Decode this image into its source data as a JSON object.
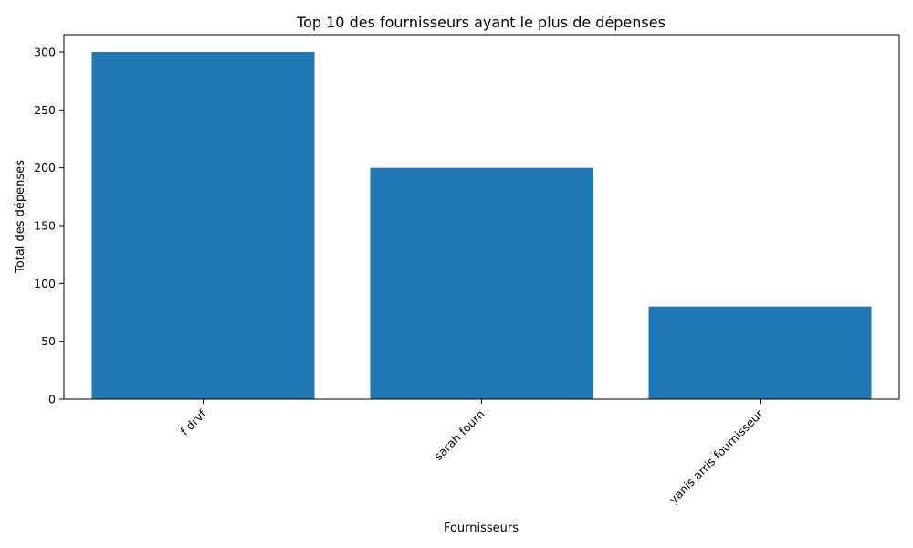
{
  "chart_data": {
    "type": "bar",
    "title": "Top 10 des fournisseurs ayant le plus de dépenses",
    "xlabel": "Fournisseurs",
    "ylabel": "Total des dépenses",
    "categories": [
      "f drvf",
      "sarah fourn",
      "yanis arris fournisseur"
    ],
    "values": [
      300,
      200,
      80
    ],
    "ylim": [
      0,
      315
    ],
    "yticks": [
      0,
      50,
      100,
      150,
      200,
      250,
      300
    ],
    "xtick_rotation_deg": 45,
    "grid": false,
    "legend": "none",
    "bar_color": "#1f77b4"
  }
}
